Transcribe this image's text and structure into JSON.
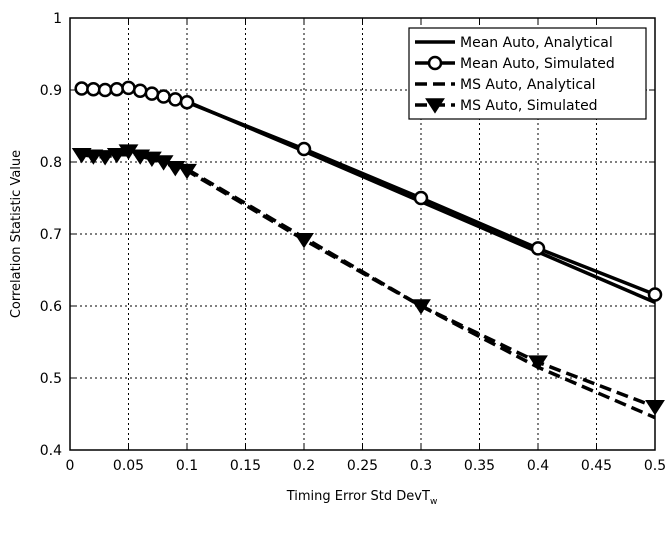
{
  "chart_data": {
    "type": "line",
    "title": "",
    "xlabel": "Timing Error Std DevT",
    "xlabel_subscript": "w",
    "ylabel": "Correlation Statistic Value",
    "xlim": [
      0,
      0.5
    ],
    "ylim": [
      0.4,
      1
    ],
    "xticks": [
      0,
      0.05,
      0.1,
      0.15,
      0.2,
      0.25,
      0.3,
      0.35,
      0.4,
      0.45,
      0.5
    ],
    "xtick_labels": [
      "0",
      "0.05",
      "0.1",
      "0.15",
      "0.2",
      "0.25",
      "0.3",
      "0.35",
      "0.4",
      "0.45",
      "0.5"
    ],
    "yticks": [
      0.4,
      0.5,
      0.6,
      0.7,
      0.8,
      0.9,
      1
    ],
    "ytick_labels": [
      "0.4",
      "0.5",
      "0.6",
      "0.7",
      "0.8",
      "0.9",
      "1"
    ],
    "grid": true,
    "legend_position": "top-right",
    "series": [
      {
        "name": "Mean Auto, Analytical",
        "style": "solid",
        "marker": "none",
        "color": "#000000",
        "x": [
          0.01,
          0.02,
          0.03,
          0.04,
          0.05,
          0.06,
          0.07,
          0.08,
          0.09,
          0.1,
          0.2,
          0.3,
          0.4,
          0.5
        ],
        "y": [
          0.9,
          0.9,
          0.9,
          0.9,
          0.9,
          0.898,
          0.895,
          0.892,
          0.888,
          0.884,
          0.815,
          0.745,
          0.675,
          0.605
        ]
      },
      {
        "name": "Mean Auto, Simulated",
        "style": "solid",
        "marker": "circle",
        "color": "#000000",
        "x": [
          0.01,
          0.02,
          0.03,
          0.04,
          0.05,
          0.06,
          0.07,
          0.08,
          0.09,
          0.1,
          0.2,
          0.3,
          0.4,
          0.5
        ],
        "y": [
          0.902,
          0.901,
          0.9,
          0.901,
          0.903,
          0.899,
          0.895,
          0.891,
          0.887,
          0.883,
          0.818,
          0.75,
          0.68,
          0.616
        ]
      },
      {
        "name": "MS Auto, Analytical",
        "style": "dashed",
        "marker": "none",
        "color": "#000000",
        "x": [
          0.01,
          0.02,
          0.03,
          0.04,
          0.05,
          0.06,
          0.07,
          0.08,
          0.09,
          0.1,
          0.2,
          0.3,
          0.4,
          0.5
        ],
        "y": [
          0.81,
          0.81,
          0.81,
          0.81,
          0.81,
          0.808,
          0.804,
          0.8,
          0.795,
          0.79,
          0.695,
          0.6,
          0.515,
          0.445
        ]
      },
      {
        "name": "MS Auto, Simulated",
        "style": "dashed",
        "marker": "triangle-down",
        "color": "#000000",
        "x": [
          0.01,
          0.02,
          0.03,
          0.04,
          0.05,
          0.06,
          0.07,
          0.08,
          0.09,
          0.1,
          0.2,
          0.3,
          0.4,
          0.5
        ],
        "y": [
          0.81,
          0.808,
          0.807,
          0.81,
          0.815,
          0.808,
          0.805,
          0.8,
          0.792,
          0.788,
          0.692,
          0.6,
          0.522,
          0.46
        ]
      }
    ]
  }
}
